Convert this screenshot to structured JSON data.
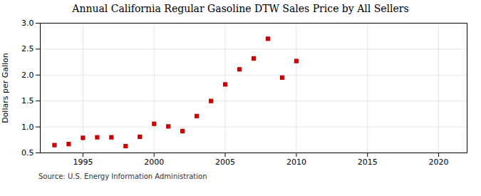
{
  "chart_data": {
    "type": "scatter",
    "title": "Annual California Regular Gasoline DTW Sales Price by All Sellers",
    "ylabel": "Dollars per Gallon",
    "annotations": [
      "Source: U.S. Energy Information Administration"
    ],
    "x": [
      1993,
      1994,
      1995,
      1996,
      1997,
      1998,
      1999,
      2000,
      2001,
      2002,
      2003,
      2004,
      2005,
      2006,
      2007,
      2008,
      2009,
      2010
    ],
    "values": [
      0.65,
      0.67,
      0.79,
      0.8,
      0.8,
      0.63,
      0.81,
      1.06,
      1.01,
      0.92,
      1.21,
      1.5,
      1.82,
      2.11,
      2.32,
      2.7,
      1.95,
      2.27
    ],
    "color": "#cc0000",
    "marker": "square",
    "xlim": [
      1992,
      2022
    ],
    "xticks": [
      1995,
      2000,
      2005,
      2010,
      2015,
      2020
    ],
    "ylim": [
      0.5,
      3.0
    ],
    "yticks": [
      0.5,
      {
        "value": 1.0,
        "label": "1.0"
      },
      1.5,
      {
        "value": 2.0,
        "label": "2.0"
      },
      2.5,
      {
        "value": 3.0,
        "label": "3.0"
      }
    ],
    "grid": true
  }
}
